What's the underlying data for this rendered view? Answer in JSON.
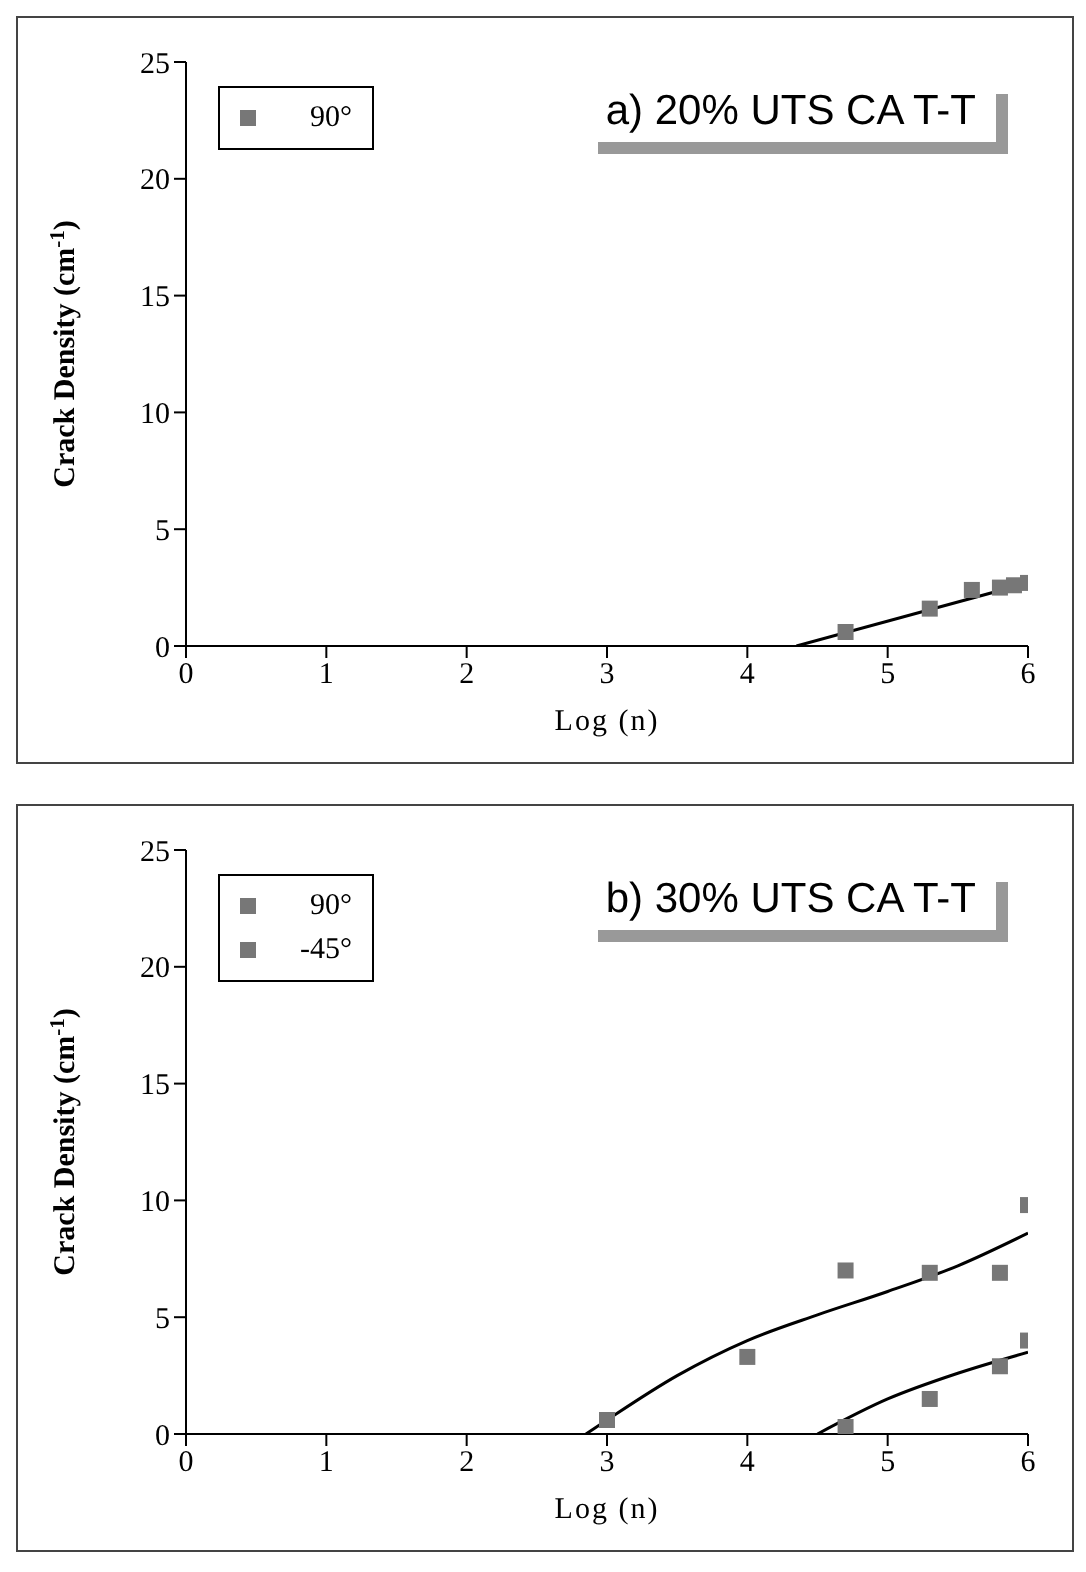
{
  "chart_data": [
    {
      "type": "scatter",
      "title": "a) 20% UTS CA T-T",
      "xlabel": "Log (n)",
      "ylabel": "Crack Density (cm$^{-1}$)",
      "xlim": [
        0,
        6
      ],
      "xticks": [
        0,
        1,
        2,
        3,
        4,
        5,
        6
      ],
      "ylim": [
        0,
        25
      ],
      "yticks": [
        0,
        5,
        10,
        15,
        20,
        25
      ],
      "legend": "top left",
      "marker": "square",
      "grid": false,
      "series": [
        {
          "name": "90°",
          "color": "#777777",
          "x": [
            4.7,
            5.3,
            5.6,
            5.8,
            5.9,
            6.0
          ],
          "values": [
            0.6,
            1.6,
            2.4,
            2.5,
            2.6,
            2.7
          ]
        },
        {
          "type": "line",
          "marker": "none",
          "color": "#000000",
          "line_style": "solid",
          "x": [
            4.35,
            6.0
          ],
          "values": [
            0,
            2.7
          ]
        }
      ]
    },
    {
      "type": "scatter",
      "title": "b) 30% UTS CA T-T",
      "xlabel": "Log (n)",
      "ylabel": "Crack Density (cm$^{-1}$)",
      "xlim": [
        0,
        6
      ],
      "xticks": [
        0,
        1,
        2,
        3,
        4,
        5,
        6
      ],
      "ylim": [
        0,
        25
      ],
      "yticks": [
        0,
        5,
        10,
        15,
        20,
        25
      ],
      "legend": "top left",
      "marker": "square",
      "grid": false,
      "series": [
        {
          "name": "90°",
          "color": "#777777",
          "x": [
            3.0,
            4.0,
            4.7,
            5.3,
            5.8,
            6.0
          ],
          "values": [
            0.6,
            3.3,
            7.0,
            6.9,
            6.9,
            9.8
          ]
        },
        {
          "name": "-45°",
          "color": "#777777",
          "x": [
            4.7,
            5.3,
            5.8,
            6.0
          ],
          "values": [
            0.3,
            1.5,
            2.9,
            4.0
          ]
        },
        {
          "type": "line",
          "marker": "none",
          "color": "#000000",
          "line_style": "solid",
          "x": [
            2.85,
            3.0,
            3.5,
            4.0,
            4.5,
            5.0,
            5.5,
            6.0
          ],
          "values": [
            0,
            0.6,
            2.5,
            4.0,
            5.1,
            6.1,
            7.2,
            8.6
          ]
        },
        {
          "type": "line",
          "marker": "none",
          "color": "#000000",
          "line_style": "solid",
          "x": [
            4.5,
            5.0,
            5.5,
            6.0
          ],
          "values": [
            0,
            1.5,
            2.6,
            3.5
          ]
        }
      ]
    }
  ]
}
